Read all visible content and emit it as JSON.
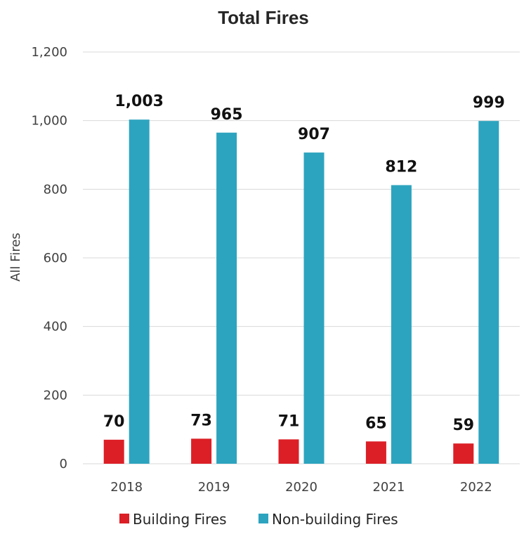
{
  "chart_data": {
    "type": "bar",
    "title": "Total Fires",
    "ylabel": "All Fires",
    "xlabel": "",
    "categories": [
      "2018",
      "2019",
      "2020",
      "2021",
      "2022"
    ],
    "series": [
      {
        "name": "Building Fires",
        "color": "#dc1f26",
        "values": [
          70,
          73,
          71,
          65,
          59
        ],
        "labels": [
          "70",
          "73",
          "71",
          "65",
          "59"
        ]
      },
      {
        "name": "Non-building Fires",
        "color": "#2da4bf",
        "values": [
          1003,
          965,
          907,
          812,
          999
        ],
        "labels": [
          "1,003",
          "965",
          "907",
          "812",
          "999"
        ]
      }
    ],
    "ylim": [
      0,
      1200
    ],
    "yticks": [
      0,
      200,
      400,
      600,
      800,
      1000,
      1200
    ],
    "ytick_labels": [
      "0",
      "200",
      "400",
      "600",
      "800",
      "1,000",
      "1,200"
    ],
    "grid": true,
    "legend_position": "bottom"
  }
}
